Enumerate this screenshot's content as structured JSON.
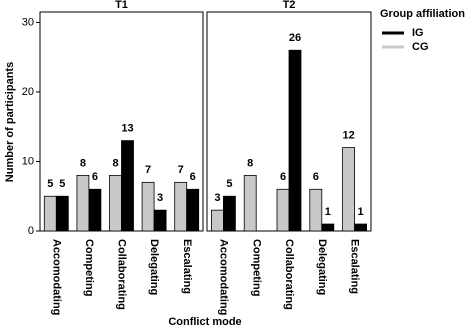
{
  "figure": {
    "xlabel": "Conflict mode",
    "ylabel": "Number of participants",
    "legend_title": "Group affiliation"
  },
  "chart_data": [
    {
      "type": "bar",
      "title": "T1",
      "categories": [
        "Accomodating",
        "Competing",
        "Collaborating",
        "Delegating",
        "Escalating"
      ],
      "series": [
        {
          "name": "CG",
          "color": "#c8c8c8",
          "values": [
            5,
            8,
            8,
            7,
            7
          ]
        },
        {
          "name": "IG",
          "color": "#000000",
          "values": [
            5,
            6,
            13,
            3,
            6
          ]
        }
      ],
      "ylim": [
        0,
        31.5
      ],
      "yticks": [
        0,
        10,
        20,
        30
      ]
    },
    {
      "type": "bar",
      "title": "T2",
      "categories": [
        "Accomodating",
        "Competing",
        "Collaborating",
        "Delegating",
        "Escalating"
      ],
      "series": [
        {
          "name": "CG",
          "color": "#c8c8c8",
          "values": [
            3,
            8,
            6,
            6,
            12
          ]
        },
        {
          "name": "IG",
          "color": "#000000",
          "values": [
            5,
            null,
            26,
            1,
            1
          ]
        }
      ],
      "ylim": [
        0,
        31.5
      ],
      "yticks": [
        0,
        10,
        20,
        30
      ]
    }
  ],
  "legend_order": [
    "IG",
    "CG"
  ]
}
